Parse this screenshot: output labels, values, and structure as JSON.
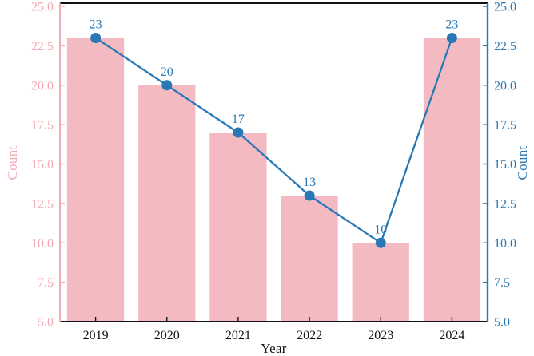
{
  "figure": {
    "background": "#ffffff",
    "plot_border_top_color": "#111111",
    "plot_border_bottom_color": "#111111"
  },
  "chart_data": {
    "type": "bar+line",
    "title": "",
    "xlabel": "Year",
    "ylabel_left": "Count",
    "ylabel_right": "Count",
    "categories": [
      "2019",
      "2020",
      "2021",
      "2022",
      "2023",
      "2024"
    ],
    "series": [
      {
        "name": "count-bars",
        "type": "bar",
        "axis": "left",
        "color": "#f4bac1",
        "values": [
          23,
          20,
          17,
          13,
          10,
          23
        ]
      },
      {
        "name": "count-line",
        "type": "line",
        "axis": "right",
        "color": "#2878b5",
        "values": [
          23,
          20,
          17,
          13,
          10,
          23
        ],
        "point_labels": [
          "23",
          "20",
          "17",
          "13",
          "10",
          "23"
        ]
      }
    ],
    "ylim": [
      5,
      25
    ],
    "yticks": [
      5.0,
      7.5,
      10.0,
      12.5,
      15.0,
      17.5,
      20.0,
      22.5,
      25.0
    ],
    "ytick_labels": [
      "5.0",
      "7.5",
      "10.0",
      "12.5",
      "15.0",
      "17.5",
      "20.0",
      "22.5",
      "25.0"
    ],
    "left_axis_color": "#f2a9b4",
    "right_axis_color": "#2878b5",
    "xtick_color": "#111111",
    "grid": false,
    "legend": "none"
  }
}
